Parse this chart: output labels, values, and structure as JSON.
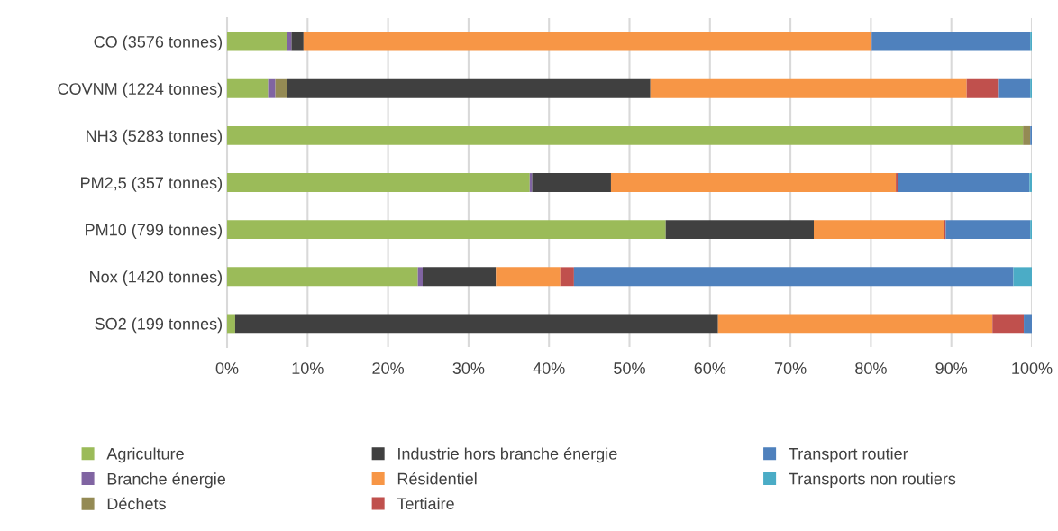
{
  "chart_data": {
    "type": "bar",
    "orientation": "horizontal",
    "stacked": true,
    "categories": [
      "CO (3576 tonnes)",
      "COVNM (1224 tonnes)",
      "NH3 (5283 tonnes)",
      "PM2,5 (357 tonnes)",
      "PM10 (799 tonnes)",
      "Nox (1420 tonnes)",
      "SO2 (199 tonnes)"
    ],
    "series": [
      {
        "name": "Agriculture",
        "color": "#9bbb59",
        "values": [
          7.4,
          5.1,
          98.9,
          37.6,
          54.5,
          23.7,
          1.0
        ]
      },
      {
        "name": "Branche énergie",
        "color": "#8064a2",
        "values": [
          0.6,
          0.9,
          0,
          0.3,
          0,
          0.6,
          0
        ]
      },
      {
        "name": "Déchets",
        "color": "#948a54",
        "values": [
          0,
          1.4,
          0.9,
          0,
          0,
          0,
          0
        ]
      },
      {
        "name": "Industrie hors branche énergie",
        "color": "#404040",
        "values": [
          1.5,
          45.2,
          0,
          9.8,
          18.4,
          9.1,
          60.0
        ]
      },
      {
        "name": "Résidentiel",
        "color": "#f79646",
        "values": [
          70.5,
          39.3,
          0,
          35.4,
          16.2,
          8.0,
          34.1
        ]
      },
      {
        "name": "Tertiaire",
        "color": "#c0504d",
        "values": [
          0.1,
          3.9,
          0,
          0.3,
          0.2,
          1.7,
          3.9
        ]
      },
      {
        "name": "Transport routier",
        "color": "#4f81bd",
        "values": [
          19.7,
          4.0,
          0.2,
          16.3,
          10.5,
          54.6,
          1.0
        ]
      },
      {
        "name": "Transports non routiers",
        "color": "#4bacc6",
        "values": [
          0.2,
          0.2,
          0,
          0.3,
          0.2,
          2.3,
          0
        ]
      }
    ],
    "xlim": [
      0,
      100
    ],
    "xticks": [
      {
        "value": 0,
        "label": "0%"
      },
      {
        "value": 10,
        "label": "10%"
      },
      {
        "value": 20,
        "label": "20%"
      },
      {
        "value": 30,
        "label": "30%"
      },
      {
        "value": 40,
        "label": "40%"
      },
      {
        "value": 50,
        "label": "50%"
      },
      {
        "value": 60,
        "label": "60%"
      },
      {
        "value": 70,
        "label": "70%"
      },
      {
        "value": 80,
        "label": "80%"
      },
      {
        "value": 90,
        "label": "90%"
      },
      {
        "value": 100,
        "label": "100%"
      }
    ],
    "grid": "x",
    "legend": "bottom"
  }
}
